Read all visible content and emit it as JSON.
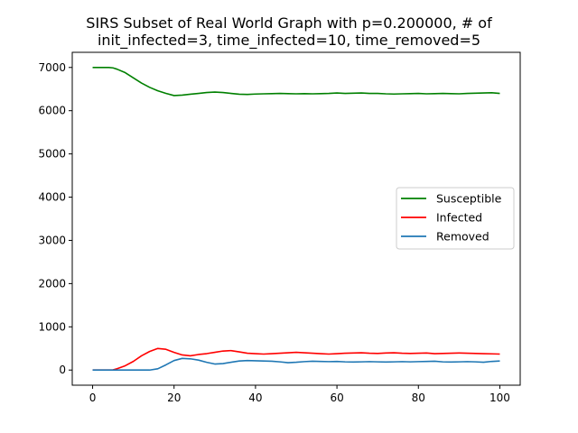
{
  "chart_data": {
    "type": "line",
    "title_lines": [
      "SIRS Subset of Real World Graph with p=0.200000, # of",
      "init_infected=3, time_infected=10, time_removed=5"
    ],
    "xlabel": "",
    "ylabel": "",
    "xlim": [
      -5,
      105
    ],
    "ylim": [
      -350,
      7350
    ],
    "xticks": [
      0,
      20,
      40,
      60,
      80,
      100
    ],
    "yticks": [
      0,
      1000,
      2000,
      3000,
      4000,
      5000,
      6000,
      7000
    ],
    "grid": false,
    "legend_position": "center-right",
    "x": [
      0,
      2,
      4,
      5,
      6,
      8,
      10,
      12,
      14,
      16,
      18,
      20,
      22,
      24,
      26,
      28,
      30,
      32,
      34,
      36,
      38,
      40,
      42,
      44,
      46,
      48,
      50,
      52,
      54,
      56,
      58,
      60,
      62,
      64,
      66,
      68,
      70,
      72,
      74,
      76,
      78,
      80,
      82,
      84,
      86,
      88,
      90,
      92,
      94,
      96,
      98,
      100
    ],
    "series": [
      {
        "name": "Susceptible",
        "color": "#008000",
        "values": [
          7000,
          7000,
          7000,
          6990,
          6960,
          6880,
          6760,
          6640,
          6540,
          6460,
          6400,
          6350,
          6360,
          6380,
          6400,
          6420,
          6430,
          6420,
          6400,
          6380,
          6375,
          6385,
          6390,
          6395,
          6400,
          6395,
          6390,
          6395,
          6390,
          6395,
          6400,
          6410,
          6400,
          6405,
          6410,
          6400,
          6400,
          6390,
          6385,
          6390,
          6395,
          6400,
          6390,
          6395,
          6400,
          6395,
          6390,
          6400,
          6405,
          6410,
          6415,
          6400
        ]
      },
      {
        "name": "Infected",
        "color": "#ff0000",
        "values": [
          0,
          0,
          0,
          5,
          30,
          100,
          200,
          330,
          430,
          500,
          480,
          410,
          350,
          330,
          360,
          380,
          410,
          440,
          450,
          420,
          390,
          380,
          370,
          380,
          390,
          400,
          410,
          400,
          390,
          380,
          370,
          380,
          390,
          395,
          400,
          390,
          385,
          395,
          400,
          390,
          385,
          390,
          395,
          380,
          385,
          390,
          395,
          390,
          385,
          380,
          375,
          370
        ]
      },
      {
        "name": "Removed",
        "color": "#1f77b4",
        "values": [
          0,
          0,
          0,
          0,
          0,
          0,
          0,
          0,
          0,
          30,
          120,
          220,
          270,
          260,
          230,
          180,
          140,
          150,
          180,
          210,
          220,
          215,
          210,
          205,
          190,
          170,
          180,
          195,
          205,
          200,
          195,
          200,
          190,
          185,
          190,
          195,
          190,
          185,
          190,
          195,
          190,
          195,
          200,
          205,
          190,
          185,
          190,
          195,
          190,
          180,
          200,
          210
        ]
      }
    ]
  }
}
